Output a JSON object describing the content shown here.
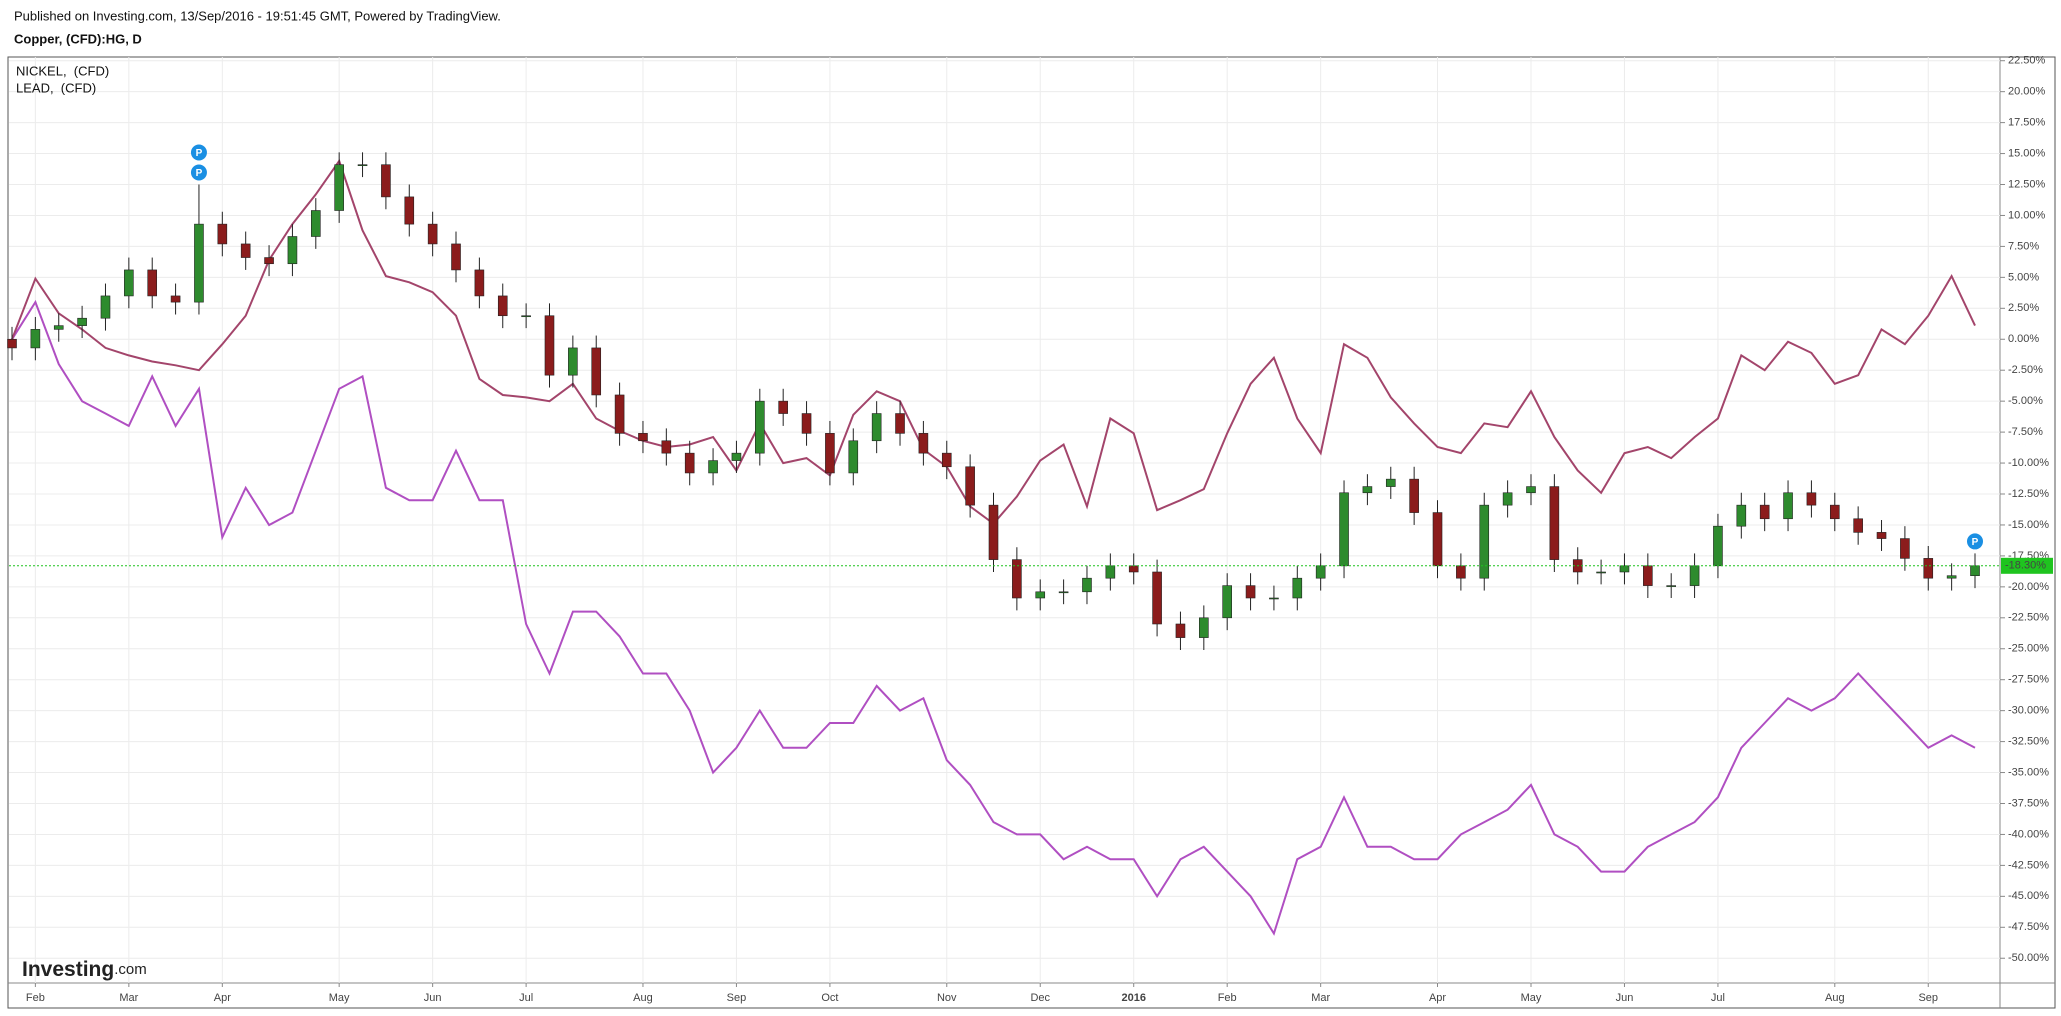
{
  "chart_data": {
    "type": "candlestick",
    "published": "Published on Investing.com, 13/Sep/2016 - 19:51:45 GMT, Powered by TradingView.",
    "logo": [
      "Investing",
      ".com"
    ],
    "categories": [
      null,
      "Feb",
      null,
      null,
      null,
      "Mar",
      null,
      null,
      null,
      "Apr",
      null,
      null,
      null,
      null,
      "May",
      null,
      null,
      null,
      "Jun",
      null,
      null,
      null,
      "Jul",
      null,
      null,
      null,
      null,
      "Aug",
      null,
      null,
      null,
      "Sep",
      null,
      null,
      null,
      "Oct",
      null,
      null,
      null,
      null,
      "Nov",
      null,
      null,
      null,
      "Dec",
      null,
      null,
      null,
      "2016",
      null,
      null,
      null,
      "Feb",
      null,
      null,
      null,
      "Mar",
      null,
      null,
      null,
      null,
      "Apr",
      null,
      null,
      null,
      "May",
      null,
      null,
      null,
      "Jun",
      null,
      null,
      null,
      "Jul",
      null,
      null,
      null,
      null,
      "Aug",
      null,
      null,
      null,
      "Sep",
      null,
      null
    ],
    "ylim": [
      -52,
      22.8
    ],
    "yticks": [
      {
        "value": 22.5,
        "label": "22.50%"
      },
      {
        "value": 20,
        "label": "20.00%"
      },
      {
        "value": 17.5,
        "label": "17.50%"
      },
      {
        "value": 15,
        "label": "15.00%"
      },
      {
        "value": 12.5,
        "label": "12.50%"
      },
      {
        "value": 10,
        "label": "10.00%"
      },
      {
        "value": 7.5,
        "label": "7.50%"
      },
      {
        "value": 5,
        "label": "5.00%"
      },
      {
        "value": 2.5,
        "label": "2.50%"
      },
      {
        "value": 0,
        "label": "0.00%"
      },
      {
        "value": -2.5,
        "label": "-2.50%"
      },
      {
        "value": -5,
        "label": "-5.00%"
      },
      {
        "value": -7.5,
        "label": "-7.50%"
      },
      {
        "value": -10,
        "label": "-10.00%"
      },
      {
        "value": -12.5,
        "label": "-12.50%"
      },
      {
        "value": -15,
        "label": "-15.00%"
      },
      {
        "value": -17.5,
        "label": "-17.50%"
      },
      {
        "value": -20,
        "label": "-20.00%"
      },
      {
        "value": -22.5,
        "label": "-22.50%"
      },
      {
        "value": -25,
        "label": "-25.00%"
      },
      {
        "value": -27.5,
        "label": "-27.50%"
      },
      {
        "value": -30,
        "label": "-30.00%"
      },
      {
        "value": -32.5,
        "label": "-32.50%"
      },
      {
        "value": -35,
        "label": "-35.00%"
      },
      {
        "value": -37.5,
        "label": "-37.50%"
      },
      {
        "value": -40,
        "label": "-40.00%"
      },
      {
        "value": -42.5,
        "label": "-42.50%"
      },
      {
        "value": -45,
        "label": "-45.00%"
      },
      {
        "value": -47.5,
        "label": "-47.50%"
      },
      {
        "value": -50,
        "label": "-50.00%"
      }
    ],
    "grid": true,
    "series": [
      {
        "name": "Copper, (CFD):HG, D",
        "type": "candlestick",
        "up_color": "#2e8b2e",
        "down_color": "#8b1c1c",
        "open": [
          0,
          -0.7,
          0.8,
          1.1,
          1.7,
          3.5,
          5.6,
          3.5,
          3.0,
          9.3,
          7.7,
          6.6,
          6.1,
          8.3,
          10.4,
          14.1,
          14.1,
          11.5,
          9.3,
          7.7,
          5.6,
          3.5,
          1.9,
          1.9,
          -2.9,
          -0.7,
          -4.5,
          -7.6,
          -8.2,
          -9.2,
          -10.8,
          -9.8,
          -9.2,
          -5.0,
          -6.0,
          -7.6,
          -10.8,
          -8.2,
          -6.0,
          -7.6,
          -9.2,
          -10.3,
          -13.4,
          -17.8,
          -20.9,
          -20.4,
          -20.4,
          -19.3,
          -18.3,
          -18.8,
          -23.0,
          -24.1,
          -22.5,
          -19.9,
          -20.9,
          -20.9,
          -19.3,
          -18.3,
          -12.4,
          -11.9,
          -11.3,
          -14.0,
          -18.3,
          -19.3,
          -13.4,
          -12.4,
          -11.9,
          -17.8,
          -18.8,
          -18.8,
          -18.3,
          -19.9,
          -19.9,
          -18.3,
          -15.1,
          -13.4,
          -14.5,
          -12.4,
          -13.4,
          -14.5,
          -15.6,
          -16.1,
          -17.7,
          -19.3,
          -19.1
        ],
        "high": [
          1.0,
          1.8,
          2.1,
          2.7,
          4.5,
          6.6,
          6.6,
          4.5,
          12.5,
          10.3,
          8.7,
          7.6,
          9.3,
          11.4,
          15.1,
          15.1,
          15.1,
          12.5,
          10.3,
          8.7,
          6.6,
          4.5,
          2.9,
          2.9,
          0.3,
          0.3,
          -3.5,
          -6.6,
          -7.2,
          -8.2,
          -8.8,
          -8.2,
          -4.0,
          -4.0,
          -5.0,
          -6.6,
          -7.2,
          -5.0,
          -5.0,
          -6.6,
          -8.2,
          -9.3,
          -12.4,
          -16.8,
          -19.4,
          -19.4,
          -18.3,
          -17.3,
          -17.3,
          -17.8,
          -22.0,
          -21.5,
          -18.9,
          -18.9,
          -19.9,
          -18.3,
          -17.3,
          -11.4,
          -10.9,
          -10.3,
          -10.3,
          -13.0,
          -17.3,
          -12.4,
          -11.4,
          -10.9,
          -10.9,
          -16.8,
          -17.8,
          -17.3,
          -17.3,
          -18.9,
          -17.3,
          -14.1,
          -12.4,
          -12.4,
          -11.4,
          -11.4,
          -12.4,
          -13.5,
          -14.6,
          -15.1,
          -16.7,
          -18.1,
          -17.3
        ],
        "low": [
          -1.7,
          -1.7,
          -0.2,
          0.1,
          0.7,
          2.5,
          2.5,
          2.0,
          2.0,
          6.7,
          5.6,
          5.1,
          5.1,
          7.3,
          9.4,
          13.1,
          10.5,
          8.3,
          6.7,
          4.6,
          2.5,
          0.9,
          0.9,
          -3.9,
          -3.9,
          -5.5,
          -8.6,
          -9.2,
          -10.2,
          -11.8,
          -11.8,
          -10.8,
          -10.2,
          -7.0,
          -8.6,
          -11.8,
          -11.8,
          -9.2,
          -8.6,
          -10.2,
          -11.3,
          -14.4,
          -18.8,
          -21.9,
          -21.9,
          -21.4,
          -21.4,
          -20.3,
          -19.8,
          -24.0,
          -25.1,
          -25.1,
          -23.5,
          -21.9,
          -21.9,
          -21.9,
          -20.3,
          -19.3,
          -13.4,
          -12.9,
          -15.0,
          -19.3,
          -20.3,
          -20.3,
          -14.4,
          -13.4,
          -18.8,
          -19.8,
          -19.8,
          -19.8,
          -20.9,
          -20.9,
          -20.9,
          -19.3,
          -16.1,
          -15.5,
          -15.5,
          -14.4,
          -15.5,
          -16.6,
          -17.1,
          -18.7,
          -20.3,
          -20.3,
          -20.1
        ],
        "close": [
          -0.7,
          0.8,
          1.1,
          1.7,
          3.5,
          5.6,
          3.5,
          3.0,
          9.3,
          7.7,
          6.6,
          6.1,
          8.3,
          10.4,
          14.1,
          14.1,
          11.5,
          9.3,
          7.7,
          5.6,
          3.5,
          1.9,
          1.9,
          -2.9,
          -0.7,
          -4.5,
          -7.6,
          -8.2,
          -9.2,
          -10.8,
          -9.8,
          -9.2,
          -5.0,
          -6.0,
          -7.6,
          -10.8,
          -8.2,
          -6.0,
          -7.6,
          -9.2,
          -10.3,
          -13.4,
          -17.8,
          -20.9,
          -20.4,
          -20.4,
          -19.3,
          -18.3,
          -18.8,
          -23.0,
          -24.1,
          -22.5,
          -19.9,
          -20.9,
          -20.9,
          -19.3,
          -18.3,
          -12.4,
          -11.9,
          -11.3,
          -14.0,
          -18.3,
          -19.3,
          -13.4,
          -12.4,
          -11.9,
          -17.8,
          -18.8,
          -18.8,
          -18.3,
          -19.9,
          -19.9,
          -18.3,
          -15.1,
          -13.4,
          -14.5,
          -12.4,
          -13.4,
          -14.5,
          -15.6,
          -16.1,
          -17.7,
          -19.3,
          -19.1,
          -18.3
        ],
        "last": {
          "value": -18.3,
          "label": "-18.30%"
        },
        "last_color": "#1fc41f",
        "annotations": [
          {
            "label": "P",
            "at": 8
          },
          {
            "label": "P",
            "at": 8
          },
          {
            "label": "P",
            "at": 84
          }
        ],
        "annotation_color": "#1a8fe3"
      },
      {
        "name": "NICKEL,  (CFD)",
        "type": "line",
        "color": "#b04fc2",
        "values": [
          0,
          3,
          -2,
          -5,
          -6,
          -7,
          -3,
          -7,
          -4,
          -16,
          -12,
          -15,
          -14,
          -9,
          -4,
          -3,
          -12,
          -13,
          -13,
          -9,
          -13,
          -13,
          -23,
          -27,
          -22,
          -22,
          -24,
          -27,
          -27,
          -30,
          -35,
          -33,
          -30,
          -33,
          -33,
          -31,
          -31,
          -28,
          -30,
          -29,
          -34,
          -36,
          -39,
          -40,
          -40,
          -42,
          -41,
          -42,
          -42,
          -45,
          -42,
          -41,
          -43,
          -45,
          -48,
          -42,
          -41,
          -37,
          -41,
          -41,
          -42,
          -42,
          -40,
          -39,
          -38,
          -36,
          -40,
          -41,
          -43,
          -43,
          -41,
          -40,
          -39,
          -37,
          -33,
          -31,
          -29,
          -30,
          -29,
          -27,
          -29,
          -31,
          -33,
          -32,
          -33
        ]
      },
      {
        "name": "LEAD,  (CFD)",
        "type": "line",
        "color": "#a3456b",
        "values": [
          0,
          4.9,
          2.1,
          0.8,
          -0.7,
          -1.3,
          -1.8,
          -2.1,
          -2.5,
          -0.4,
          1.9,
          6.4,
          9.3,
          11.7,
          14.4,
          8.8,
          5.1,
          4.6,
          3.8,
          1.9,
          -3.2,
          -4.5,
          -4.7,
          -5.0,
          -3.6,
          -6.4,
          -7.4,
          -8.2,
          -8.7,
          -8.5,
          -7.9,
          -10.6,
          -6.8,
          -10.0,
          -9.6,
          -11.0,
          -6.1,
          -4.2,
          -5.0,
          -8.9,
          -10.3,
          -13.5,
          -14.9,
          -12.7,
          -9.8,
          -8.5,
          -13.5,
          -6.4,
          -7.6,
          -13.8,
          -13.0,
          -12.1,
          -7.6,
          -3.6,
          -1.5,
          -6.4,
          -9.2,
          -0.4,
          -1.5,
          -4.7,
          -6.8,
          -8.7,
          -9.2,
          -6.8,
          -7.1,
          -4.2,
          -7.9,
          -10.6,
          -12.4,
          -9.2,
          -8.7,
          -9.6,
          -7.9,
          -6.4,
          -1.3,
          -2.5,
          -0.2,
          -1.1,
          -3.6,
          -2.9,
          0.8,
          -0.4,
          1.9,
          5.1,
          1.1
        ]
      }
    ]
  }
}
